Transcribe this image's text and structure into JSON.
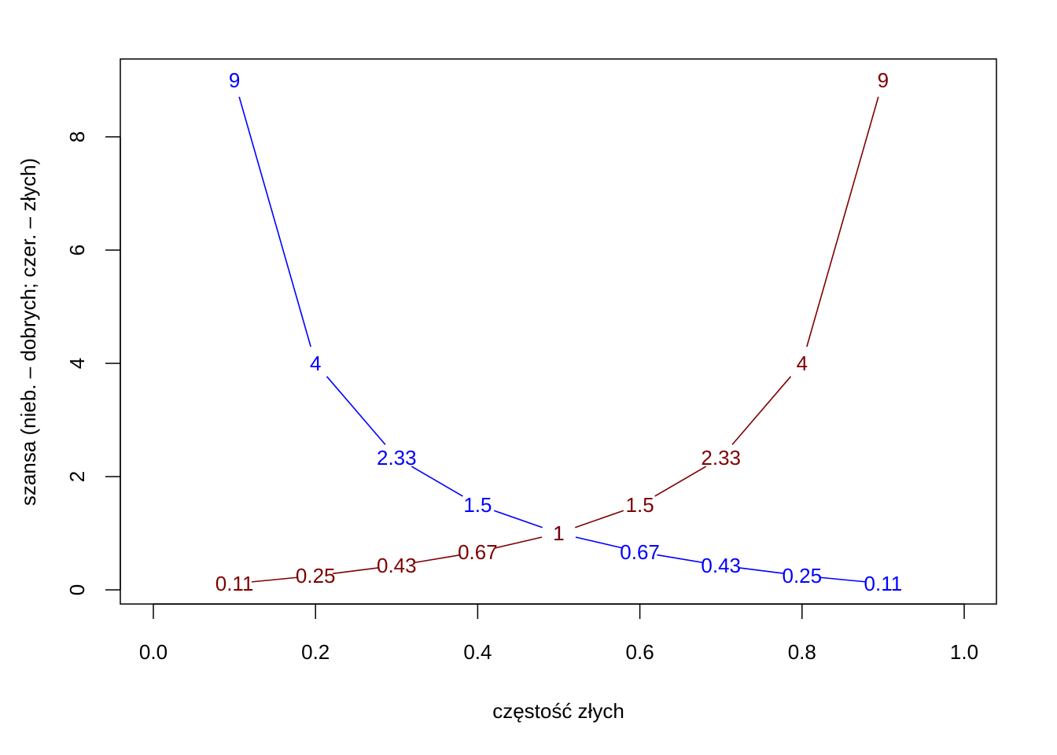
{
  "chart_data": {
    "type": "line",
    "title": "",
    "xlabel": "częstość złych",
    "ylabel": "szansa (nieb. – dobrych; czer. – złych)",
    "xlim": [
      0.0,
      1.0
    ],
    "ylim": [
      0,
      9
    ],
    "x_ticks": [
      0.0,
      0.2,
      0.4,
      0.6,
      0.8,
      1.0
    ],
    "x_tick_labels": [
      "0.0",
      "0.2",
      "0.4",
      "0.6",
      "0.8",
      "1.0"
    ],
    "y_ticks": [
      0,
      2,
      4,
      6,
      8
    ],
    "y_tick_labels": [
      "0",
      "2",
      "4",
      "6",
      "8"
    ],
    "grid": false,
    "x": [
      0.1,
      0.2,
      0.3,
      0.4,
      0.5,
      0.6,
      0.7,
      0.8,
      0.9
    ],
    "series": [
      {
        "name": "dobrych",
        "color": "#0000ff",
        "values": [
          9,
          4,
          2.333,
          1.5,
          1,
          0.667,
          0.429,
          0.25,
          0.111
        ],
        "labels": [
          "9",
          "4",
          "2.33",
          "1.5",
          "1",
          "0.67",
          "0.43",
          "0.25",
          "0.11"
        ]
      },
      {
        "name": "złych",
        "color": "#7f0000",
        "values": [
          0.111,
          0.25,
          0.429,
          0.667,
          1,
          1.5,
          2.333,
          4,
          9
        ],
        "labels": [
          "0.11",
          "0.25",
          "0.43",
          "0.67",
          "1",
          "1.5",
          "2.33",
          "4",
          "9"
        ]
      }
    ]
  }
}
